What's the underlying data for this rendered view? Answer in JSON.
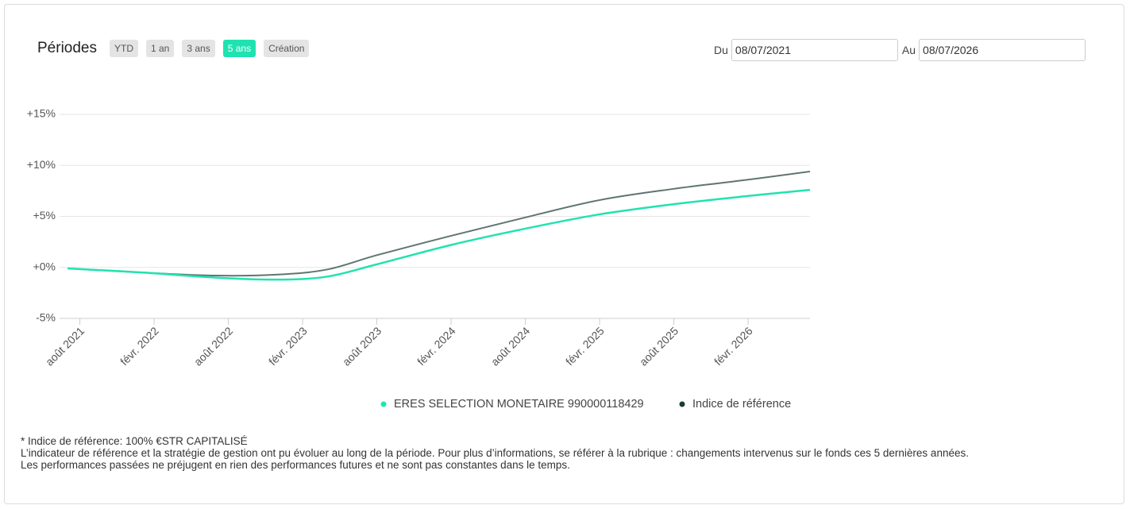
{
  "periods": {
    "title": "Périodes",
    "buttons": [
      "YTD",
      "1 an",
      "3 ans",
      "5 ans",
      "Création"
    ],
    "active_index": 3
  },
  "date_range": {
    "from_label": "Du",
    "from_value": "08/07/2021",
    "to_label": "Au",
    "to_value": "08/07/2026"
  },
  "chart_data": {
    "type": "line",
    "x": [
      "2021-07",
      "2022-01",
      "2022-07",
      "2022-12",
      "2023-04",
      "2023-08",
      "2024-02",
      "2024-08",
      "2025-02",
      "2025-08",
      "2026-02",
      "2026-07"
    ],
    "xlim": [
      "2021-07",
      "2026-07"
    ],
    "xticks": [
      {
        "value": "2021-08",
        "label": "août 2021"
      },
      {
        "value": "2022-02",
        "label": "févr. 2022"
      },
      {
        "value": "2022-08",
        "label": "août 2022"
      },
      {
        "value": "2023-02",
        "label": "févr. 2023"
      },
      {
        "value": "2023-08",
        "label": "août 2023"
      },
      {
        "value": "2024-02",
        "label": "févr. 2024"
      },
      {
        "value": "2024-08",
        "label": "août 2024"
      },
      {
        "value": "2025-02",
        "label": "févr. 2025"
      },
      {
        "value": "2025-08",
        "label": "août 2025"
      },
      {
        "value": "2026-02",
        "label": "févr. 2026"
      }
    ],
    "ylim": [
      -5,
      15
    ],
    "yticks": [
      {
        "value": 15,
        "label": "+15%"
      },
      {
        "value": 10,
        "label": "+10%"
      },
      {
        "value": 5,
        "label": "+5%"
      },
      {
        "value": 0,
        "label": "+0%"
      },
      {
        "value": -5,
        "label": "-5%"
      }
    ],
    "grid": true,
    "series": [
      {
        "name": "ERES SELECTION MONETAIRE 990000118429",
        "color": "#22e2b0",
        "values": [
          -0.1,
          -0.5,
          -1.0,
          -1.2,
          -0.9,
          0.3,
          2.2,
          3.8,
          5.2,
          6.2,
          7.0,
          7.6
        ]
      },
      {
        "name": "Indice de référence",
        "color": "#5f7572",
        "values": [
          -0.1,
          -0.5,
          -0.8,
          -0.7,
          -0.2,
          1.2,
          3.1,
          4.9,
          6.6,
          7.7,
          8.6,
          9.4
        ]
      }
    ]
  },
  "notes": [
    "* Indice de référence: 100% €STR CAPITALISÉ",
    "L’indicateur de référence et la stratégie de gestion ont pu évoluer au long de la période. Pour plus d’informations, se référer à la rubrique : changements intervenus sur le fonds ces 5 dernières années.",
    "Les performances passées ne préjugent en rien des performances futures et ne sont pas constantes dans le temps."
  ]
}
